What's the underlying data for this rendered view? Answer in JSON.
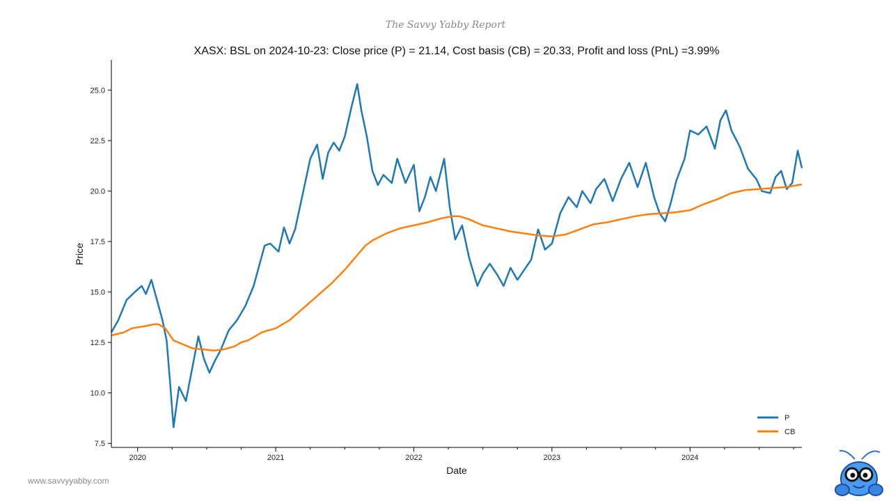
{
  "header": {
    "report_title": "The Savvy Yabby Report"
  },
  "footer": {
    "website": "www.savvyyabby.com"
  },
  "colors": {
    "price_line": "#1f77b4",
    "cost_basis_line": "#ff7f0e"
  },
  "icons": {
    "mascot": "yabby-mascot-icon"
  },
  "chart_data": {
    "type": "line",
    "title": "XASX: BSL on 2024-10-23: Close price (P) = 21.14, Cost basis (CB) = 20.33, Profit and loss (PnL) =3.99%",
    "xlabel": "Date",
    "ylabel": "Price",
    "xlim": [
      2019.81,
      2024.81
    ],
    "ylim": [
      7.3,
      26.5
    ],
    "yticks": [
      7.5,
      10.0,
      12.5,
      15.0,
      17.5,
      20.0,
      22.5,
      25.0
    ],
    "ytick_labels": [
      "7.5",
      "10.0",
      "12.5",
      "15.0",
      "17.5",
      "20.0",
      "22.5",
      "25.0"
    ],
    "xticks": [
      2020,
      2021,
      2022,
      2023,
      2024
    ],
    "xtick_labels": [
      "2020",
      "2021",
      "2022",
      "2023",
      "2024"
    ],
    "grid": false,
    "legend_position": "bottom-right",
    "series": [
      {
        "name": "P",
        "color": "#1f77b4",
        "x": [
          2019.81,
          2019.86,
          2019.92,
          2019.98,
          2020.03,
          2020.06,
          2020.1,
          2020.14,
          2020.18,
          2020.21,
          2020.24,
          2020.26,
          2020.3,
          2020.35,
          2020.4,
          2020.44,
          2020.48,
          2020.52,
          2020.56,
          2020.6,
          2020.66,
          2020.72,
          2020.78,
          2020.84,
          2020.88,
          2020.92,
          2020.96,
          2021.02,
          2021.06,
          2021.1,
          2021.14,
          2021.2,
          2021.25,
          2021.3,
          2021.34,
          2021.38,
          2021.42,
          2021.46,
          2021.5,
          2021.55,
          2021.59,
          2021.62,
          2021.66,
          2021.7,
          2021.74,
          2021.78,
          2021.84,
          2021.88,
          2021.94,
          2022.0,
          2022.04,
          2022.08,
          2022.12,
          2022.16,
          2022.22,
          2022.26,
          2022.3,
          2022.35,
          2022.4,
          2022.46,
          2022.5,
          2022.55,
          2022.6,
          2022.65,
          2022.7,
          2022.75,
          2022.8,
          2022.85,
          2022.9,
          2022.95,
          2023.0,
          2023.06,
          2023.12,
          2023.18,
          2023.22,
          2023.28,
          2023.32,
          2023.38,
          2023.44,
          2023.5,
          2023.56,
          2023.62,
          2023.68,
          2023.74,
          2023.78,
          2023.82,
          2023.86,
          2023.9,
          2023.96,
          2024.0,
          2024.06,
          2024.12,
          2024.18,
          2024.22,
          2024.26,
          2024.3,
          2024.36,
          2024.42,
          2024.48,
          2024.52,
          2024.58,
          2024.62,
          2024.66,
          2024.7,
          2024.74,
          2024.78,
          2024.81
        ],
        "y": [
          13.0,
          13.6,
          14.6,
          15.0,
          15.3,
          14.9,
          15.6,
          14.6,
          13.6,
          12.6,
          10.1,
          8.3,
          10.3,
          9.6,
          11.4,
          12.8,
          11.7,
          11.0,
          11.6,
          12.1,
          13.1,
          13.6,
          14.3,
          15.3,
          16.3,
          17.3,
          17.4,
          17.0,
          18.2,
          17.4,
          18.1,
          20.0,
          21.6,
          22.3,
          20.6,
          21.9,
          22.4,
          22.0,
          22.7,
          24.2,
          25.3,
          24.0,
          22.7,
          21.0,
          20.3,
          20.8,
          20.4,
          21.6,
          20.4,
          21.3,
          19.0,
          19.7,
          20.7,
          20.0,
          21.6,
          19.2,
          17.6,
          18.3,
          16.7,
          15.3,
          15.9,
          16.4,
          15.9,
          15.3,
          16.2,
          15.6,
          16.1,
          16.6,
          18.1,
          17.1,
          17.4,
          18.9,
          19.7,
          19.2,
          20.0,
          19.4,
          20.1,
          20.6,
          19.5,
          20.6,
          21.4,
          20.2,
          21.4,
          19.7,
          18.9,
          18.5,
          19.4,
          20.5,
          21.6,
          23.0,
          22.8,
          23.2,
          22.1,
          23.5,
          24.0,
          23.0,
          22.2,
          21.1,
          20.6,
          20.0,
          19.9,
          20.7,
          21.0,
          20.1,
          20.4,
          22.0,
          21.14
        ]
      },
      {
        "name": "CB",
        "color": "#ff7f0e",
        "x": [
          2019.81,
          2019.9,
          2019.96,
          2020.05,
          2020.12,
          2020.15,
          2020.2,
          2020.26,
          2020.33,
          2020.4,
          2020.48,
          2020.55,
          2020.62,
          2020.7,
          2020.75,
          2020.8,
          2020.85,
          2020.9,
          2021.0,
          2021.1,
          2021.2,
          2021.3,
          2021.4,
          2021.5,
          2021.6,
          2021.65,
          2021.7,
          2021.8,
          2021.9,
          2022.0,
          2022.1,
          2022.2,
          2022.28,
          2022.33,
          2022.4,
          2022.5,
          2022.6,
          2022.7,
          2022.8,
          2022.9,
          2023.0,
          2023.1,
          2023.2,
          2023.3,
          2023.4,
          2023.5,
          2023.6,
          2023.7,
          2023.8,
          2023.9,
          2024.0,
          2024.1,
          2024.2,
          2024.3,
          2024.4,
          2024.5,
          2024.6,
          2024.7,
          2024.81
        ],
        "y": [
          12.85,
          13.0,
          13.2,
          13.3,
          13.4,
          13.4,
          13.2,
          12.6,
          12.4,
          12.2,
          12.15,
          12.1,
          12.15,
          12.3,
          12.5,
          12.6,
          12.8,
          13.0,
          13.2,
          13.6,
          14.2,
          14.8,
          15.4,
          16.1,
          16.9,
          17.3,
          17.55,
          17.9,
          18.15,
          18.3,
          18.45,
          18.65,
          18.75,
          18.75,
          18.6,
          18.3,
          18.15,
          18.0,
          17.9,
          17.8,
          17.75,
          17.85,
          18.1,
          18.35,
          18.45,
          18.6,
          18.75,
          18.85,
          18.9,
          18.95,
          19.05,
          19.35,
          19.6,
          19.9,
          20.05,
          20.1,
          20.15,
          20.2,
          20.33
        ]
      }
    ]
  }
}
